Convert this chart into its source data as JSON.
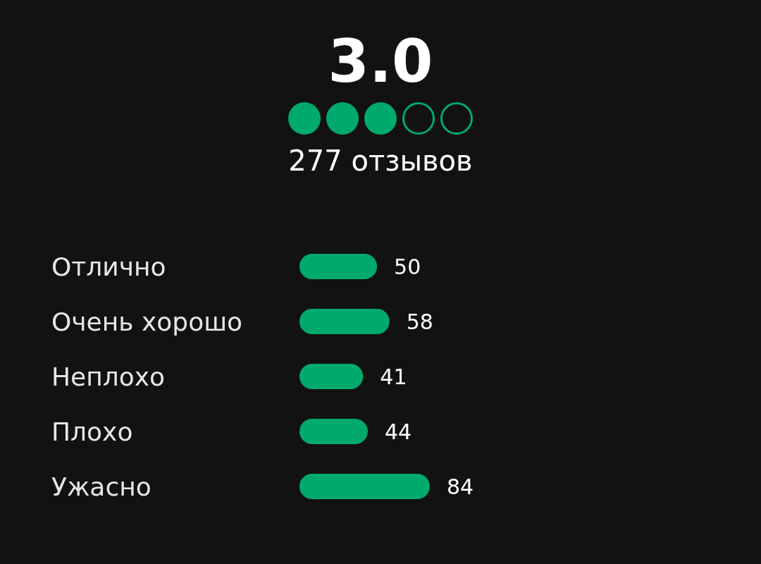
{
  "chart_data": {
    "type": "bar",
    "orientation": "horizontal",
    "title": "3.0",
    "subtitle": "277 отзывов",
    "categories": [
      "Отлично",
      "Очень хорошо",
      "Неплохо",
      "Плохо",
      "Ужасно"
    ],
    "values": [
      50,
      58,
      41,
      44,
      84
    ],
    "color": "#00aa6c",
    "data_labels": true
  }
}
